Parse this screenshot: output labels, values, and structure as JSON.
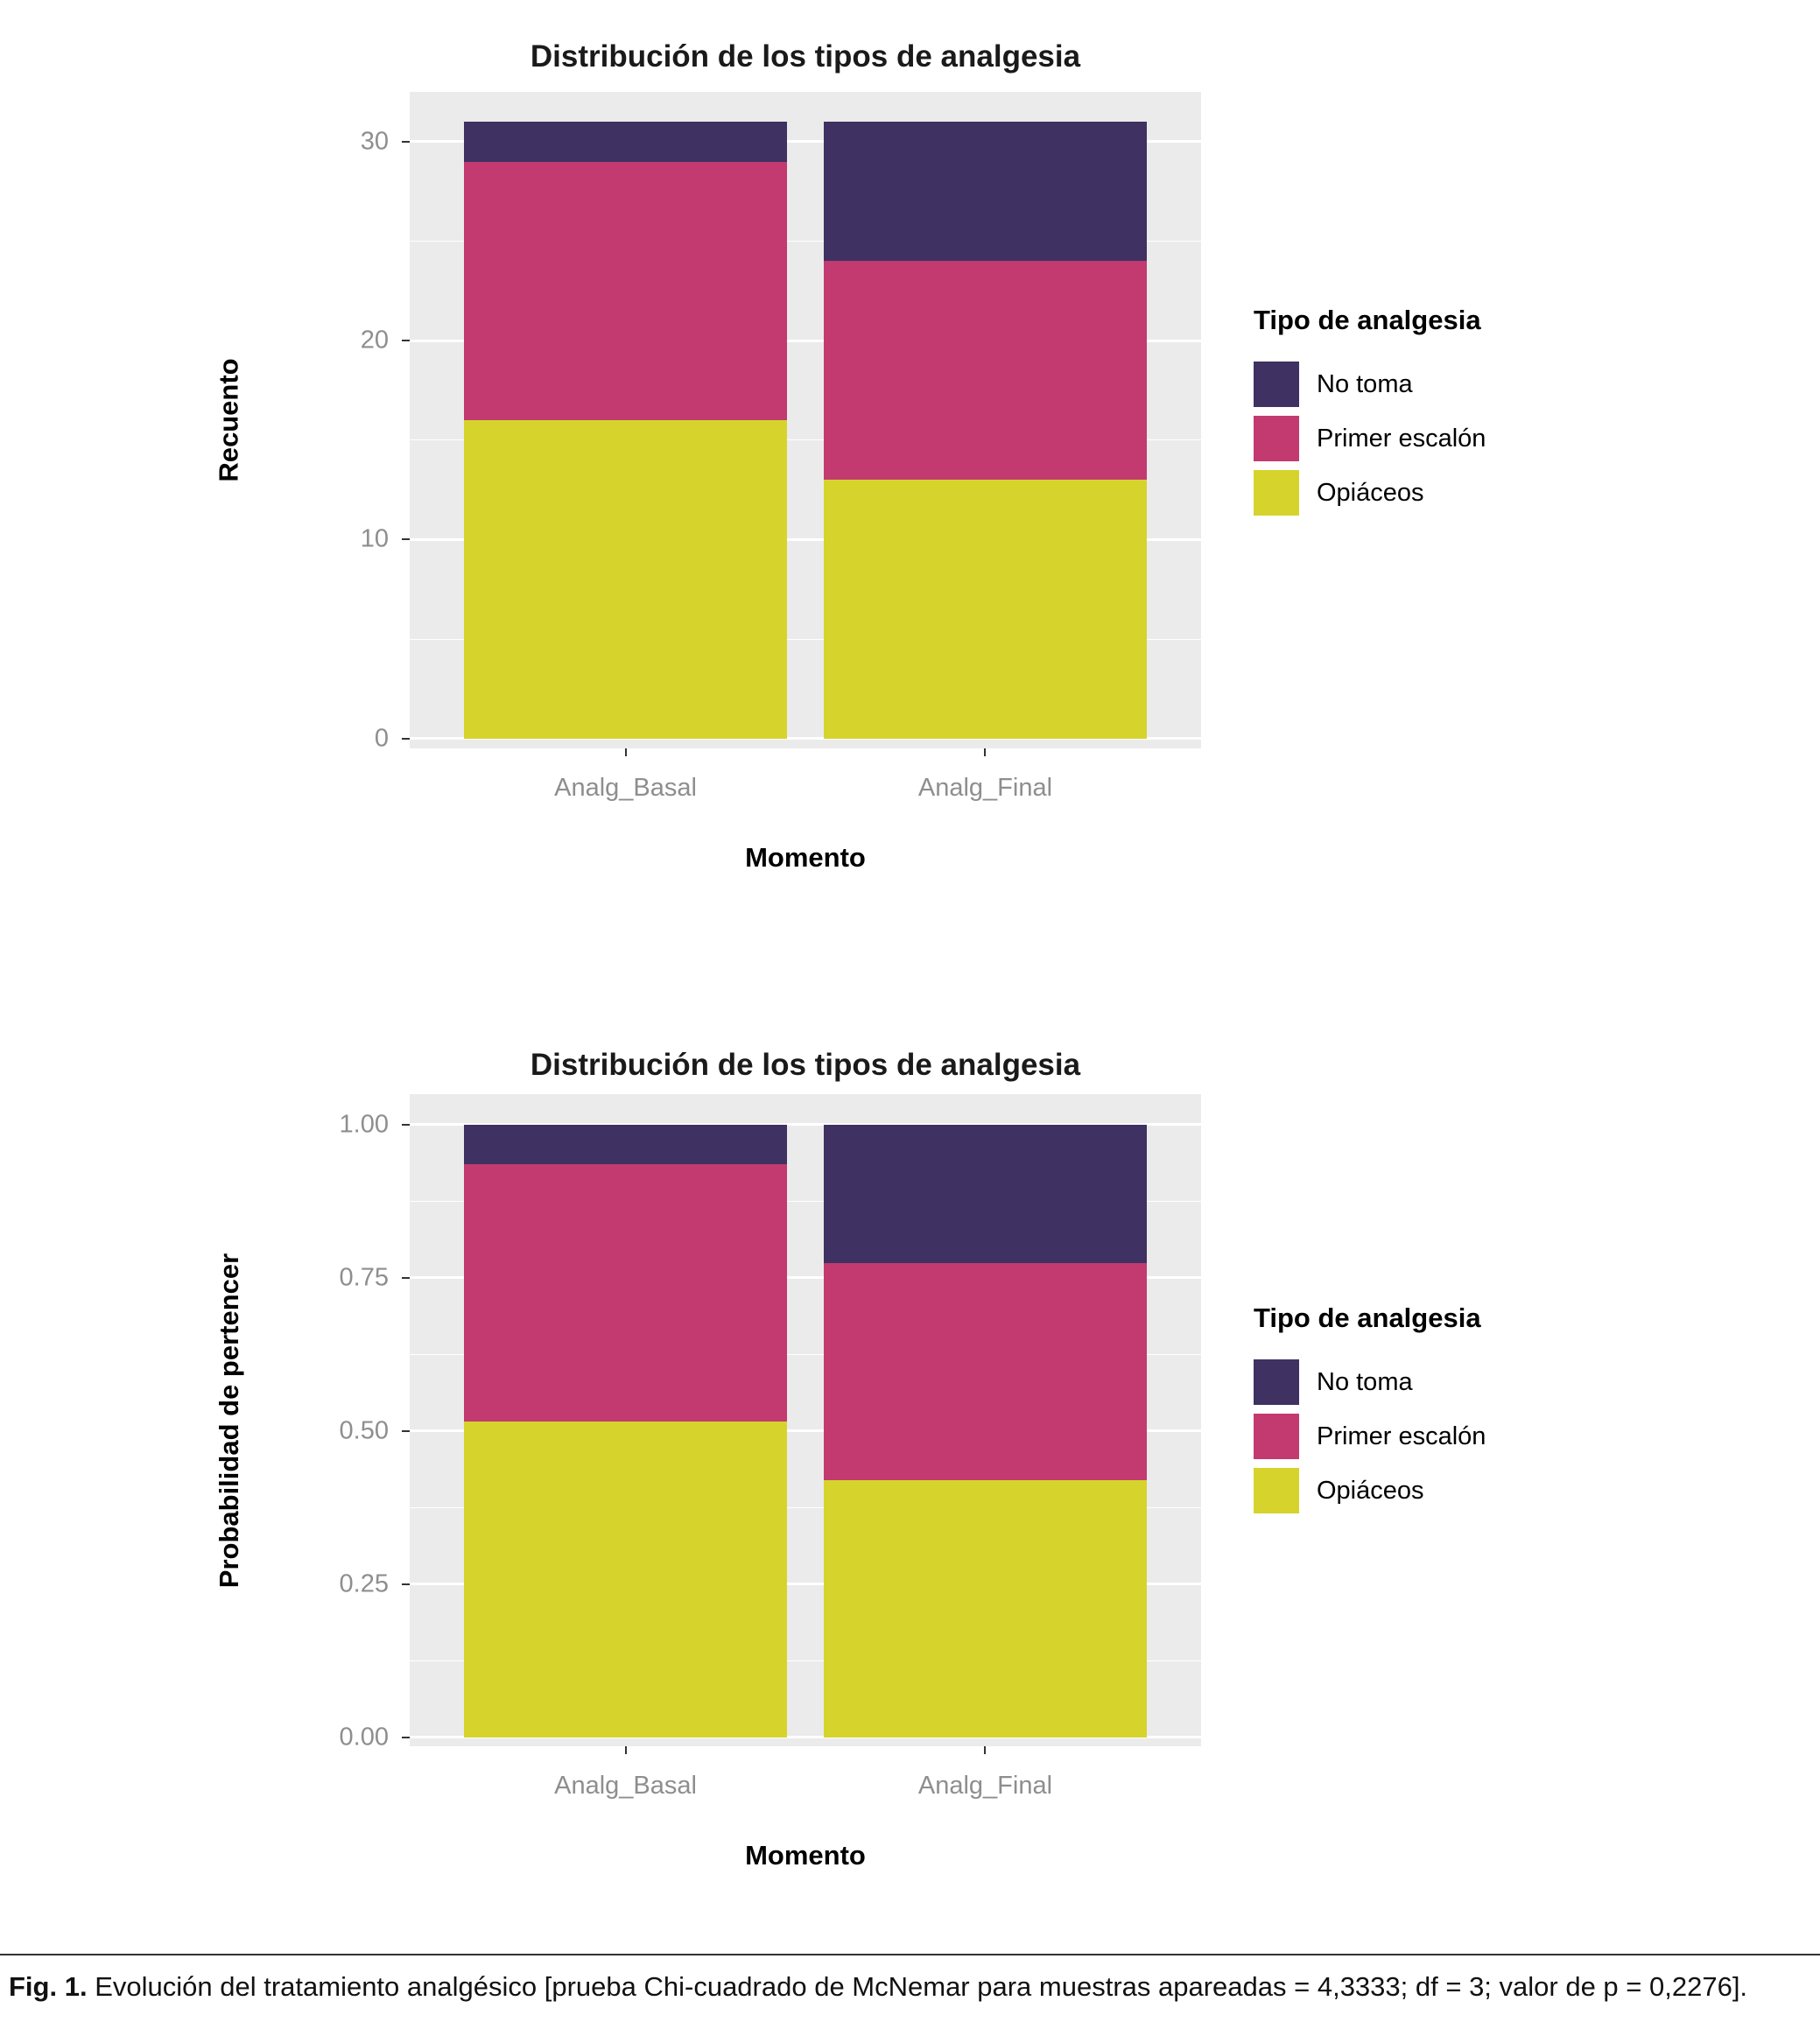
{
  "colors": {
    "no_toma": "#3F3162",
    "primer_escalon": "#C33A70",
    "opiaceos": "#D6D42C",
    "panel_background": "#EBEBEB",
    "gridline": "#FFFFFF",
    "axis_text": "#8E8E8E",
    "axis_title": "#000000",
    "tick_mark": "#333333"
  },
  "legend": {
    "title": "Tipo de analgesia",
    "items": [
      {
        "label": "No toma",
        "color_key": "no_toma"
      },
      {
        "label": "Primer escalón",
        "color_key": "primer_escalon"
      },
      {
        "label": "Opiáceos",
        "color_key": "opiaceos"
      }
    ]
  },
  "chart_data": [
    {
      "type": "bar",
      "stacked": true,
      "title": "Distribución de los tipos de analgesia",
      "xlabel": "Momento",
      "ylabel": "Recuento",
      "categories": [
        "Analg_Basal",
        "Analg_Final"
      ],
      "series": [
        {
          "name": "Opiáceos",
          "color_key": "opiaceos",
          "values": [
            16,
            13
          ]
        },
        {
          "name": "Primer escalón",
          "color_key": "primer_escalon",
          "values": [
            13,
            11
          ]
        },
        {
          "name": "No toma",
          "color_key": "no_toma",
          "values": [
            2,
            7
          ]
        }
      ],
      "totals": [
        31,
        31
      ],
      "yticks": [
        0,
        10,
        20,
        30
      ],
      "ytick_labels": [
        "0",
        "10",
        "20",
        "30"
      ],
      "minor_ticks": [
        5,
        15,
        25
      ],
      "ylim": [
        -0.5,
        32.5
      ],
      "grid": true,
      "legend_position": "right",
      "legend_title": "Tipo de analgesia"
    },
    {
      "type": "bar",
      "stacked": true,
      "title": "Distribución de los tipos de analgesia",
      "xlabel": "Momento",
      "ylabel": "Probabilidad de pertencer",
      "categories": [
        "Analg_Basal",
        "Analg_Final"
      ],
      "series": [
        {
          "name": "Opiáceos",
          "color_key": "opiaceos",
          "values": [
            0.516,
            0.419
          ]
        },
        {
          "name": "Primer escalón",
          "color_key": "primer_escalon",
          "values": [
            0.419,
            0.355
          ]
        },
        {
          "name": "No toma",
          "color_key": "no_toma",
          "values": [
            0.065,
            0.226
          ]
        }
      ],
      "totals": [
        1.0,
        1.0
      ],
      "yticks": [
        0,
        0.25,
        0.5,
        0.75,
        1.0
      ],
      "ytick_labels": [
        "0.00",
        "0.25",
        "0.50",
        "0.75",
        "1.00"
      ],
      "minor_ticks": [
        0.125,
        0.375,
        0.625,
        0.875
      ],
      "ylim": [
        -0.015,
        1.05
      ],
      "grid": true,
      "legend_position": "right",
      "legend_title": "Tipo de analgesia"
    }
  ],
  "caption": {
    "label": "Fig. 1.",
    "text": "Evolución del tratamiento analgésico [prueba Chi-cuadrado de McNemar para muestras apareadas = 4,3333; df = 3; valor de p = 0,2276]."
  }
}
